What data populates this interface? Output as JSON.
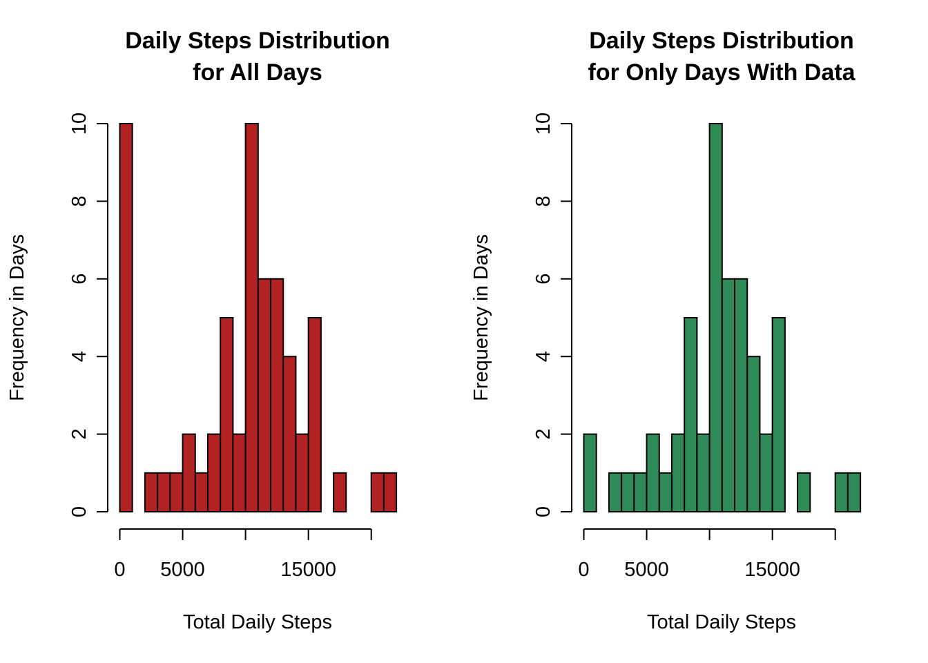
{
  "chart_data": [
    {
      "type": "bar",
      "title_line1": "Daily Steps Distribution",
      "title_line2": "for All Days",
      "xlabel": "Total Daily Steps",
      "ylabel": "Frequency in Days",
      "bar_color": "#B22222",
      "bin_width": 1000,
      "x_start": 0,
      "xlim": [
        0,
        22000
      ],
      "ylim": [
        0,
        10
      ],
      "y_ticks": [
        0,
        2,
        4,
        6,
        8,
        10
      ],
      "x_ticks": [
        0,
        5000,
        10000,
        15000,
        20000
      ],
      "x_tick_labels": [
        "0",
        "5000",
        "",
        "15000",
        ""
      ],
      "values": [
        10,
        0,
        1,
        1,
        1,
        2,
        1,
        2,
        5,
        2,
        10,
        6,
        6,
        4,
        2,
        5,
        0,
        1,
        0,
        0,
        1,
        1
      ]
    },
    {
      "type": "bar",
      "title_line1": "Daily Steps Distribution",
      "title_line2": "for Only Days With Data",
      "xlabel": "Total Daily Steps",
      "ylabel": "Frequency in Days",
      "bar_color": "#2E8B57",
      "bin_width": 1000,
      "x_start": 0,
      "xlim": [
        0,
        22000
      ],
      "ylim": [
        0,
        10
      ],
      "y_ticks": [
        0,
        2,
        4,
        6,
        8,
        10
      ],
      "x_ticks": [
        0,
        5000,
        10000,
        15000,
        20000
      ],
      "x_tick_labels": [
        "0",
        "5000",
        "",
        "15000",
        ""
      ],
      "values": [
        2,
        0,
        1,
        1,
        1,
        2,
        1,
        2,
        5,
        2,
        10,
        6,
        6,
        4,
        2,
        5,
        0,
        1,
        0,
        0,
        1,
        1
      ]
    }
  ]
}
